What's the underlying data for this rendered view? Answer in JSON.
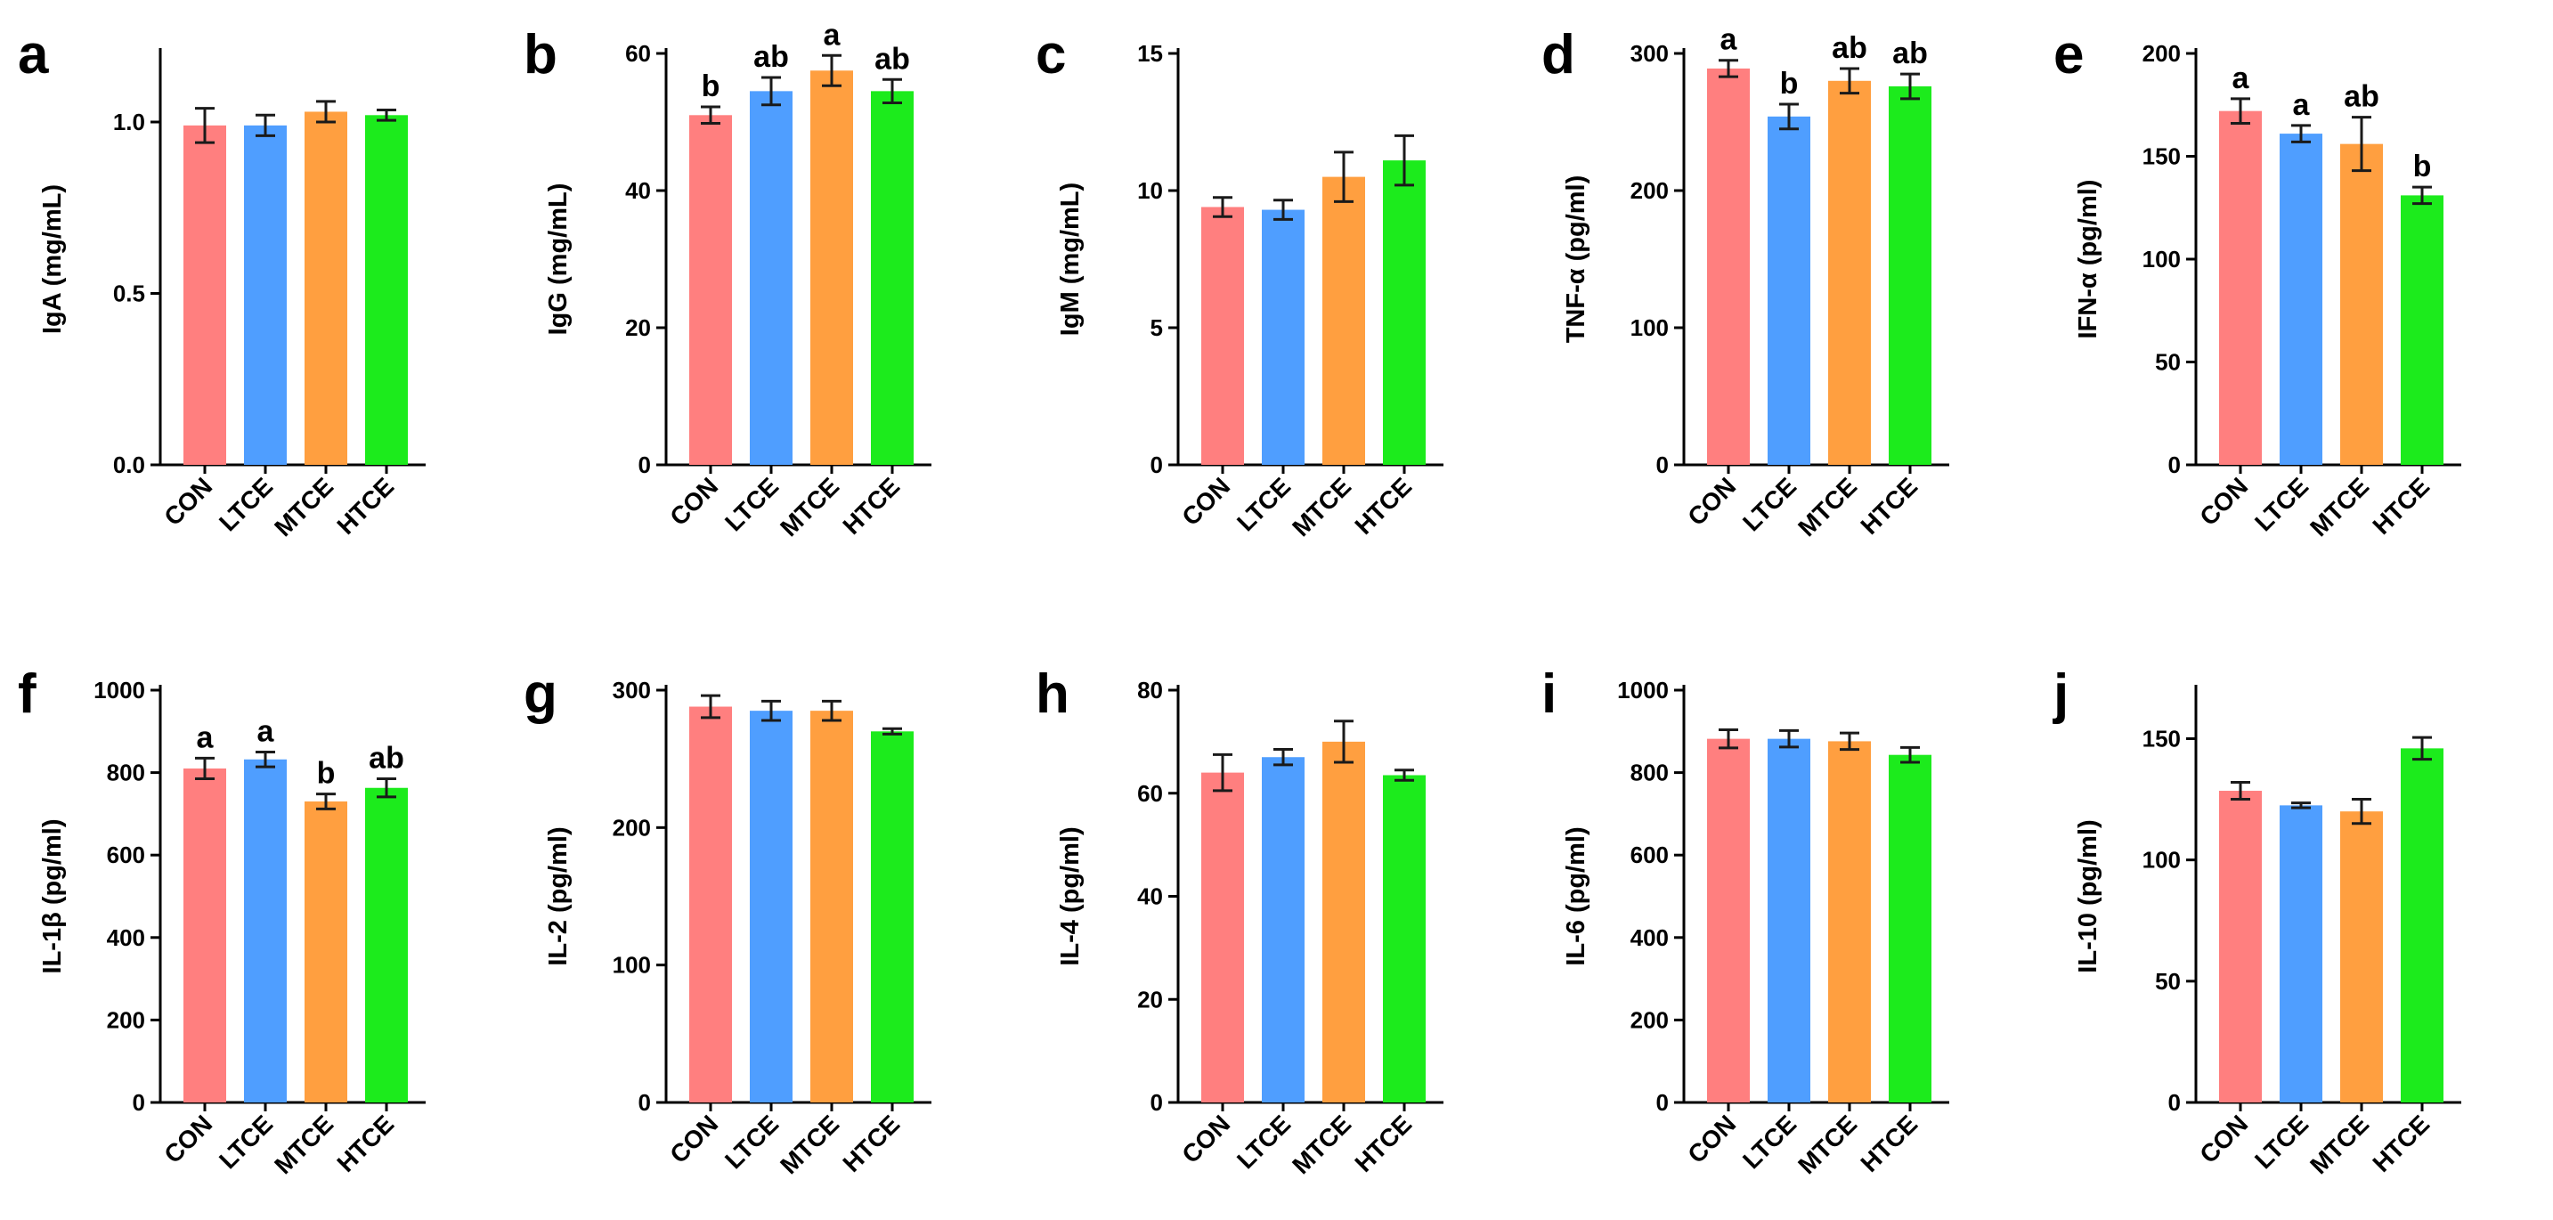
{
  "figure": {
    "groups": [
      "CON",
      "LTCE",
      "MTCE",
      "HTCE"
    ],
    "colors": {
      "CON": "#FF7F7F",
      "LTCE": "#4F9EFF",
      "MTCE": "#FF9F40",
      "HTCE": "#1CEB1C"
    }
  },
  "chart_data": [
    {
      "panel": "a",
      "type": "bar",
      "ylabel": "IgA (mg/mL)",
      "categories": [
        "CON",
        "LTCE",
        "MTCE",
        "HTCE"
      ],
      "values": [
        0.99,
        0.99,
        1.03,
        1.02
      ],
      "errors": [
        0.05,
        0.03,
        0.03,
        0.015
      ],
      "sig": [
        "",
        "",
        "",
        ""
      ],
      "ylim": [
        0,
        1.2
      ],
      "ticks": [
        0,
        0.5,
        1.0
      ],
      "tick_labels": [
        "0.0",
        "0.5",
        "1.0"
      ]
    },
    {
      "panel": "b",
      "type": "bar",
      "ylabel": "IgG (mg/mL)",
      "categories": [
        "CON",
        "LTCE",
        "MTCE",
        "HTCE"
      ],
      "values": [
        51,
        54.5,
        57.5,
        54.5
      ],
      "errors": [
        1.2,
        2,
        2.2,
        1.7
      ],
      "sig": [
        "b",
        "ab",
        "a",
        "ab"
      ],
      "ylim": [
        0,
        60
      ],
      "ticks": [
        0,
        20,
        40,
        60
      ],
      "tick_labels": [
        "0",
        "20",
        "40",
        "60"
      ]
    },
    {
      "panel": "c",
      "type": "bar",
      "ylabel": "IgM (mg/mL)",
      "categories": [
        "CON",
        "LTCE",
        "MTCE",
        "HTCE"
      ],
      "values": [
        9.4,
        9.3,
        10.5,
        11.1
      ],
      "errors": [
        0.35,
        0.35,
        0.9,
        0.9
      ],
      "sig": [
        "",
        "",
        "",
        ""
      ],
      "ylim": [
        0,
        15
      ],
      "ticks": [
        0,
        5,
        10,
        15
      ],
      "tick_labels": [
        "0",
        "5",
        "10",
        "15"
      ]
    },
    {
      "panel": "d",
      "type": "bar",
      "ylabel": "TNF-α (pg/ml)",
      "categories": [
        "CON",
        "LTCE",
        "MTCE",
        "HTCE"
      ],
      "values": [
        289,
        254,
        280,
        276
      ],
      "errors": [
        6,
        9,
        9,
        9
      ],
      "sig": [
        "a",
        "b",
        "ab",
        "ab"
      ],
      "ylim": [
        0,
        300
      ],
      "ticks": [
        0,
        100,
        200,
        300
      ],
      "tick_labels": [
        "0",
        "100",
        "200",
        "300"
      ]
    },
    {
      "panel": "e",
      "type": "bar",
      "ylabel": "IFN-α (pg/ml)",
      "categories": [
        "CON",
        "LTCE",
        "MTCE",
        "HTCE"
      ],
      "values": [
        172,
        161,
        156,
        131
      ],
      "errors": [
        6,
        4,
        13,
        4
      ],
      "sig": [
        "a",
        "a",
        "ab",
        "b"
      ],
      "ylim": [
        0,
        200
      ],
      "ticks": [
        0,
        50,
        100,
        150,
        200
      ],
      "tick_labels": [
        "0",
        "50",
        "100",
        "150",
        "200"
      ]
    },
    {
      "panel": "f",
      "type": "bar",
      "ylabel": "IL-1β (pg/ml)",
      "categories": [
        "CON",
        "LTCE",
        "MTCE",
        "HTCE"
      ],
      "values": [
        810,
        832,
        730,
        763
      ],
      "errors": [
        25,
        18,
        18,
        22
      ],
      "sig": [
        "a",
        "a",
        "b",
        "ab"
      ],
      "ylim": [
        0,
        1000
      ],
      "ticks": [
        0,
        200,
        400,
        600,
        800,
        1000
      ],
      "tick_labels": [
        "0",
        "200",
        "400",
        "600",
        "800",
        "1000"
      ]
    },
    {
      "panel": "g",
      "type": "bar",
      "ylabel": "IL-2 (pg/ml)",
      "categories": [
        "CON",
        "LTCE",
        "MTCE",
        "HTCE"
      ],
      "values": [
        288,
        285,
        285,
        270
      ],
      "errors": [
        8,
        7,
        7,
        2
      ],
      "sig": [
        "",
        "",
        "",
        ""
      ],
      "ylim": [
        0,
        300
      ],
      "ticks": [
        0,
        100,
        200,
        300
      ],
      "tick_labels": [
        "0",
        "100",
        "200",
        "300"
      ]
    },
    {
      "panel": "h",
      "type": "bar",
      "ylabel": "IL-4 (pg/ml)",
      "categories": [
        "CON",
        "LTCE",
        "MTCE",
        "HTCE"
      ],
      "values": [
        64,
        67,
        70,
        63.5
      ],
      "errors": [
        3.5,
        1.5,
        4,
        1
      ],
      "sig": [
        "",
        "",
        "",
        ""
      ],
      "ylim": [
        0,
        80
      ],
      "ticks": [
        0,
        20,
        40,
        60,
        80
      ],
      "tick_labels": [
        "0",
        "20",
        "40",
        "60",
        "80"
      ]
    },
    {
      "panel": "i",
      "type": "bar",
      "ylabel": "IL-6 (pg/ml)",
      "categories": [
        "CON",
        "LTCE",
        "MTCE",
        "HTCE"
      ],
      "values": [
        882,
        882,
        876,
        843
      ],
      "errors": [
        22,
        20,
        20,
        18
      ],
      "sig": [
        "",
        "",
        "",
        ""
      ],
      "ylim": [
        0,
        1000
      ],
      "ticks": [
        0,
        200,
        400,
        600,
        800,
        1000
      ],
      "tick_labels": [
        "0",
        "200",
        "400",
        "600",
        "800",
        "1000"
      ]
    },
    {
      "panel": "j",
      "type": "bar",
      "ylabel": "IL-10 (pg/ml)",
      "categories": [
        "CON",
        "LTCE",
        "MTCE",
        "HTCE"
      ],
      "values": [
        128.5,
        122.5,
        120,
        146
      ],
      "errors": [
        3.5,
        1,
        5,
        4.5
      ],
      "sig": [
        "",
        "",
        "",
        ""
      ],
      "ylim": [
        0,
        170
      ],
      "ticks": [
        0,
        50,
        100,
        150
      ],
      "tick_labels": [
        "0",
        "50",
        "100",
        "150"
      ]
    }
  ]
}
